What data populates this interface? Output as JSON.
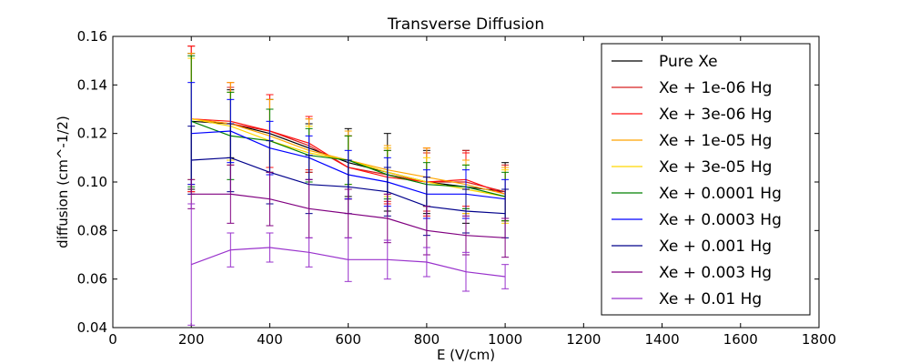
{
  "chart_data": {
    "type": "line",
    "title": "Transverse Diffusion",
    "xlabel": "E (V/cm)",
    "ylabel": "diffusion (cm^-1/2)",
    "xlim": [
      0,
      1800
    ],
    "ylim": [
      0.04,
      0.16
    ],
    "xticks": [
      "0",
      "200",
      "400",
      "600",
      "800",
      "1000",
      "1200",
      "1400",
      "1600",
      "1800"
    ],
    "yticks": [
      "0.04",
      "0.06",
      "0.08",
      "0.10",
      "0.12",
      "0.14",
      "0.16"
    ],
    "legend_position": "top-right",
    "grid": false,
    "x": [
      200,
      300,
      400,
      500,
      600,
      700,
      800,
      900,
      1000
    ],
    "series": [
      {
        "name": "Pure Xe",
        "color": "#000000",
        "values": [
          0.125,
          0.124,
          0.12,
          0.114,
          0.108,
          0.104,
          0.1,
          0.098,
          0.096
        ],
        "errors": [
          0.028,
          0.014,
          0.014,
          0.01,
          0.014,
          0.016,
          0.013,
          0.015,
          0.012
        ]
      },
      {
        "name": "Xe + 1e-06 Hg",
        "color": "#d62020",
        "values": [
          0.126,
          0.124,
          0.121,
          0.115,
          0.106,
          0.103,
          0.1,
          0.1,
          0.096
        ],
        "errors": [
          0.03,
          0.015,
          0.015,
          0.011,
          0.013,
          0.011,
          0.012,
          0.013,
          0.011
        ]
      },
      {
        "name": "Xe + 3e-06 Hg",
        "color": "#ff1010",
        "values": [
          0.126,
          0.125,
          0.121,
          0.116,
          0.106,
          0.102,
          0.1,
          0.101,
          0.095
        ],
        "errors": [
          0.03,
          0.016,
          0.015,
          0.011,
          0.013,
          0.011,
          0.014,
          0.011,
          0.011
        ]
      },
      {
        "name": "Xe + 1e-05 Hg",
        "color": "#ffa500",
        "values": [
          0.126,
          0.124,
          0.119,
          0.113,
          0.109,
          0.105,
          0.102,
          0.099,
          0.095
        ],
        "errors": [
          0.027,
          0.017,
          0.015,
          0.013,
          0.012,
          0.01,
          0.012,
          0.01,
          0.011
        ]
      },
      {
        "name": "Xe + 3e-05 Hg",
        "color": "#ffd700",
        "values": [
          0.126,
          0.123,
          0.117,
          0.112,
          0.109,
          0.104,
          0.1,
          0.097,
          0.094
        ],
        "errors": [
          0.025,
          0.014,
          0.013,
          0.011,
          0.01,
          0.01,
          0.01,
          0.01,
          0.011
        ]
      },
      {
        "name": "Xe + 0.0001 Hg",
        "color": "#008000",
        "values": [
          0.125,
          0.119,
          0.117,
          0.111,
          0.109,
          0.103,
          0.099,
          0.098,
          0.094
        ],
        "errors": [
          0.027,
          0.018,
          0.013,
          0.011,
          0.01,
          0.01,
          0.009,
          0.009,
          0.01
        ]
      },
      {
        "name": "Xe + 0.0003 Hg",
        "color": "#0000ff",
        "values": [
          0.12,
          0.121,
          0.114,
          0.11,
          0.103,
          0.1,
          0.095,
          0.095,
          0.093
        ],
        "errors": [
          0.021,
          0.013,
          0.011,
          0.009,
          0.01,
          0.01,
          0.01,
          0.01,
          0.008
        ]
      },
      {
        "name": "Xe + 0.001 Hg",
        "color": "#00008b",
        "values": [
          0.109,
          0.11,
          0.104,
          0.099,
          0.098,
          0.096,
          0.09,
          0.088,
          0.087
        ],
        "errors": [
          0.014,
          0.014,
          0.013,
          0.012,
          0.011,
          0.01,
          0.012,
          0.009,
          0.01
        ]
      },
      {
        "name": "Xe + 0.003 Hg",
        "color": "#800080",
        "values": [
          0.095,
          0.095,
          0.093,
          0.089,
          0.087,
          0.085,
          0.08,
          0.078,
          0.077
        ],
        "errors": [
          0.006,
          0.012,
          0.011,
          0.012,
          0.01,
          0.01,
          0.01,
          0.008,
          0.008
        ]
      },
      {
        "name": "Xe + 0.01 Hg",
        "color": "#9932cc",
        "values": [
          0.066,
          0.072,
          0.073,
          0.071,
          0.068,
          0.068,
          0.067,
          0.063,
          0.061
        ],
        "errors": [
          0.025,
          0.007,
          0.006,
          0.006,
          0.009,
          0.008,
          0.006,
          0.008,
          0.005
        ]
      }
    ]
  }
}
